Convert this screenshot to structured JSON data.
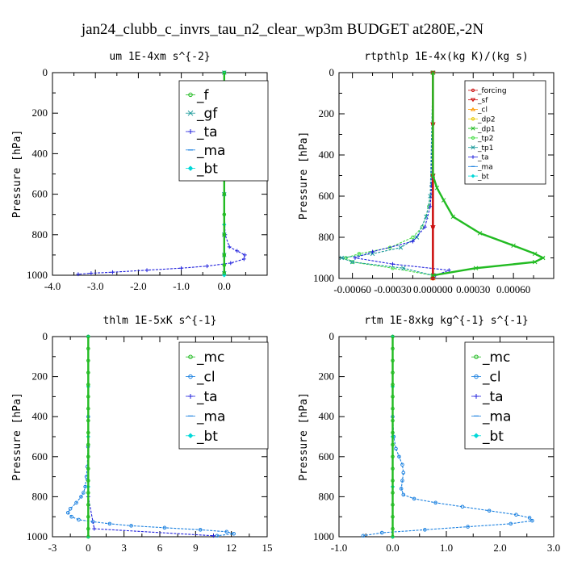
{
  "title": "jan24_clubb_c_invrs_tau_n2_clear_wp3m  BUDGET at280E,-2N",
  "colors": {
    "green": "#22bb22",
    "teal": "#199999",
    "blue": "#2222dd",
    "lightblue": "#1a80e0",
    "cyan": "#00d8d8",
    "red": "#cc1111",
    "orange": "#ff9900",
    "gold": "#e8c800",
    "lime": "#44dd44",
    "black": "#000000"
  },
  "chart_data": [
    {
      "type": "line",
      "title": "um   1E-4xm s^{-2}",
      "ylabel": "Pressure [hPa]",
      "xlim": [
        -4.0,
        1.0
      ],
      "ylim": [
        1000,
        0
      ],
      "xticks": [
        -4.0,
        -3.0,
        -2.0,
        -1.0,
        0.0
      ],
      "xtick_labels": [
        "-4.0",
        "-3.0",
        "-2.0",
        "-1.0",
        "0.0"
      ],
      "yticks": [
        0,
        200,
        400,
        600,
        800,
        1000
      ],
      "legend_size": "large",
      "series": [
        {
          "name": "_f",
          "color": "green",
          "marker": "o",
          "p": [
            0,
            100,
            200,
            300,
            400,
            500,
            600,
            700,
            800,
            900,
            950,
            990
          ],
          "x": [
            0,
            0,
            0,
            0,
            0,
            0,
            0,
            0,
            0,
            0,
            0,
            0
          ]
        },
        {
          "name": "_gf",
          "color": "teal",
          "marker": "x",
          "p": [
            0,
            300,
            600,
            800,
            900,
            990
          ],
          "x": [
            0,
            0,
            0,
            0,
            0,
            0
          ]
        },
        {
          "name": "_ta",
          "color": "blue",
          "marker": "+",
          "p": [
            0,
            600,
            800,
            860,
            880,
            900,
            920,
            940,
            955,
            965,
            975,
            985,
            990,
            995
          ],
          "x": [
            0,
            0,
            0.02,
            0.12,
            0.3,
            0.48,
            0.46,
            0.15,
            -0.4,
            -1.0,
            -1.8,
            -2.6,
            -3.1,
            -3.4
          ]
        },
        {
          "name": "_ma",
          "color": "lightblue",
          "marker": "-",
          "p": [
            0,
            1000
          ],
          "x": [
            0,
            0
          ]
        },
        {
          "name": "_bt",
          "color": "cyan",
          "marker": "D",
          "p": [
            0,
            250,
            500,
            750,
            1000
          ],
          "x": [
            0,
            0,
            0,
            0,
            0
          ]
        }
      ]
    },
    {
      "type": "line",
      "title": "rtpthlp   1E-4x(kg K)/(kg s)",
      "ylabel": "Pressure [hPa]",
      "xlim": [
        -0.0007,
        0.0009
      ],
      "ylim": [
        1000,
        0
      ],
      "xticks": [
        -0.0006,
        -0.0003,
        0.0,
        0.0003,
        0.0006
      ],
      "xtick_labels": [
        "-0.00060",
        "-0.00030",
        "0.000000",
        "0.00030",
        "0.00060"
      ],
      "yticks": [
        0,
        200,
        400,
        600,
        800,
        1000
      ],
      "legend_size": "small",
      "series": [
        {
          "name": "_forcing",
          "color": "red",
          "marker": "o",
          "p": [
            0,
            250,
            500,
            750,
            1000
          ],
          "x": [
            0,
            0,
            0,
            0,
            0
          ]
        },
        {
          "name": "_sf",
          "color": "red",
          "marker": "v",
          "p": [
            0,
            250,
            500,
            750,
            1000
          ],
          "x": [
            0,
            0,
            0,
            0,
            0
          ]
        },
        {
          "name": "_cl",
          "color": "orange",
          "marker": "^",
          "p": [
            0,
            1000
          ],
          "x": [
            0,
            0
          ]
        },
        {
          "name": "_dp2",
          "color": "gold",
          "marker": "o",
          "p": [
            0,
            1000
          ],
          "x": [
            0,
            0
          ]
        },
        {
          "name": "_dp1",
          "color": "green",
          "marker": "x",
          "p": [
            0,
            500,
            560,
            620,
            700,
            780,
            840,
            880,
            900,
            920,
            950,
            985
          ],
          "x": [
            0,
            0,
            3e-05,
            8e-05,
            0.00015,
            0.00035,
            0.0006,
            0.00076,
            0.00082,
            0.00076,
            0.00032,
            0.0
          ]
        },
        {
          "name": "_tp2",
          "color": "lime",
          "marker": "o",
          "p": [
            0,
            550,
            650,
            750,
            800,
            850,
            880,
            900,
            920,
            950,
            985
          ],
          "x": [
            0,
            -1e-05,
            -3e-05,
            -8e-05,
            -0.00015,
            -0.00032,
            -0.00055,
            -0.00065,
            -0.0006,
            -0.0003,
            0.0
          ]
        },
        {
          "name": "_tp1",
          "color": "teal",
          "marker": "x",
          "p": [
            0,
            600,
            700,
            800,
            850,
            880,
            900,
            920,
            950,
            985
          ],
          "x": [
            0,
            -2e-05,
            -5e-05,
            -0.00012,
            -0.00024,
            -0.00045,
            -0.00068,
            -0.0006,
            -0.00022,
            0.0
          ]
        },
        {
          "name": "_ta",
          "color": "blue",
          "marker": "+",
          "p": [
            0,
            550,
            650,
            750,
            820,
            870,
            900,
            930,
            960,
            985
          ],
          "x": [
            0,
            -1e-05,
            -2e-05,
            -6e-05,
            -0.00015,
            -0.00045,
            -0.00058,
            -0.0003,
            0.00012,
            2e-05
          ]
        },
        {
          "name": "_ma",
          "color": "lightblue",
          "marker": "-",
          "p": [
            0,
            1000
          ],
          "x": [
            0,
            0
          ]
        },
        {
          "name": "_bt",
          "color": "cyan",
          "marker": "D",
          "p": [
            0,
            1000
          ],
          "x": [
            0,
            0
          ]
        }
      ]
    },
    {
      "type": "line",
      "title": "thlm   1E-5xK s^{-1}",
      "ylabel": "Pressure [hPa]",
      "xlim": [
        -3,
        15
      ],
      "ylim": [
        1000,
        0
      ],
      "xticks": [
        -3,
        0,
        3,
        6,
        9,
        12,
        15
      ],
      "xtick_labels": [
        "-3",
        "0",
        "3",
        "6",
        "9",
        "12",
        "15"
      ],
      "yticks": [
        0,
        200,
        400,
        600,
        800,
        1000
      ],
      "legend_size": "large",
      "series": [
        {
          "name": "_mc",
          "color": "green",
          "marker": "o",
          "p": [
            0,
            60,
            120,
            180,
            240,
            300,
            360,
            420,
            480,
            540,
            600,
            660,
            720,
            780,
            840,
            900,
            960,
            1000
          ],
          "x": [
            0,
            0,
            0,
            0,
            0,
            0,
            0,
            0,
            0,
            0,
            0,
            0,
            0,
            0,
            0,
            0,
            0,
            0
          ]
        },
        {
          "name": "_cl",
          "color": "lightblue",
          "marker": "o",
          "p": [
            0,
            400,
            550,
            650,
            700,
            750,
            780,
            800,
            830,
            860,
            880,
            900,
            915,
            925,
            935,
            945,
            955,
            965,
            975,
            985,
            995
          ],
          "x": [
            0,
            0,
            -0.02,
            -0.08,
            -0.15,
            -0.25,
            -0.4,
            -0.6,
            -1.0,
            -1.5,
            -1.7,
            -1.4,
            -0.8,
            0.4,
            1.8,
            3.6,
            6.4,
            9.4,
            11.6,
            12.2,
            10.8
          ]
        },
        {
          "name": "_ta",
          "color": "blue",
          "marker": "+",
          "p": [
            0,
            800,
            960,
            995
          ],
          "x": [
            0,
            0,
            0.5,
            10.5
          ]
        },
        {
          "name": "_ma",
          "color": "lightblue",
          "marker": "-",
          "p": [
            0,
            1000
          ],
          "x": [
            0,
            0
          ]
        },
        {
          "name": "_bt",
          "color": "cyan",
          "marker": "D",
          "p": [
            0,
            250,
            500,
            750,
            1000
          ],
          "x": [
            0,
            0,
            0,
            0,
            0
          ]
        }
      ]
    },
    {
      "type": "line",
      "title": "rtm   1E-8xkg kg^{-1} s^{-1}",
      "ylabel": "Pressure [hPa]",
      "xlim": [
        -1.0,
        3.0
      ],
      "ylim": [
        1000,
        0
      ],
      "xticks": [
        -1.0,
        0.0,
        1.0,
        2.0,
        3.0
      ],
      "xtick_labels": [
        "-1.0",
        "0.0",
        "1.0",
        "2.0",
        "3.0"
      ],
      "yticks": [
        0,
        200,
        400,
        600,
        800,
        1000
      ],
      "legend_size": "large",
      "series": [
        {
          "name": "_mc",
          "color": "green",
          "marker": "o",
          "p": [
            0,
            60,
            120,
            180,
            240,
            300,
            360,
            420,
            480,
            540,
            600,
            660,
            720,
            780,
            840,
            900,
            960,
            1000
          ],
          "x": [
            0,
            0,
            0,
            0,
            0,
            0,
            0,
            0,
            0,
            0,
            0,
            0,
            0,
            0,
            0,
            0,
            0,
            0
          ]
        },
        {
          "name": "_cl",
          "color": "lightblue",
          "marker": "o",
          "p": [
            0,
            400,
            500,
            560,
            600,
            640,
            680,
            720,
            760,
            790,
            810,
            830,
            850,
            870,
            890,
            905,
            920,
            935,
            950,
            965,
            980,
            995
          ],
          "x": [
            0,
            0,
            0.02,
            0.06,
            0.12,
            0.18,
            0.2,
            0.18,
            0.16,
            0.2,
            0.4,
            0.8,
            1.3,
            1.8,
            2.3,
            2.55,
            2.6,
            2.2,
            1.4,
            0.6,
            -0.2,
            -0.55
          ]
        },
        {
          "name": "_ta",
          "color": "blue",
          "marker": "+",
          "p": [
            0,
            1000
          ],
          "x": [
            0,
            0
          ]
        },
        {
          "name": "_ma",
          "color": "lightblue",
          "marker": "-",
          "p": [
            0,
            1000
          ],
          "x": [
            0,
            0
          ]
        },
        {
          "name": "_bt",
          "color": "cyan",
          "marker": "D",
          "p": [
            0,
            250,
            500,
            750,
            1000
          ],
          "x": [
            0,
            0,
            0,
            0,
            0
          ]
        }
      ]
    }
  ]
}
